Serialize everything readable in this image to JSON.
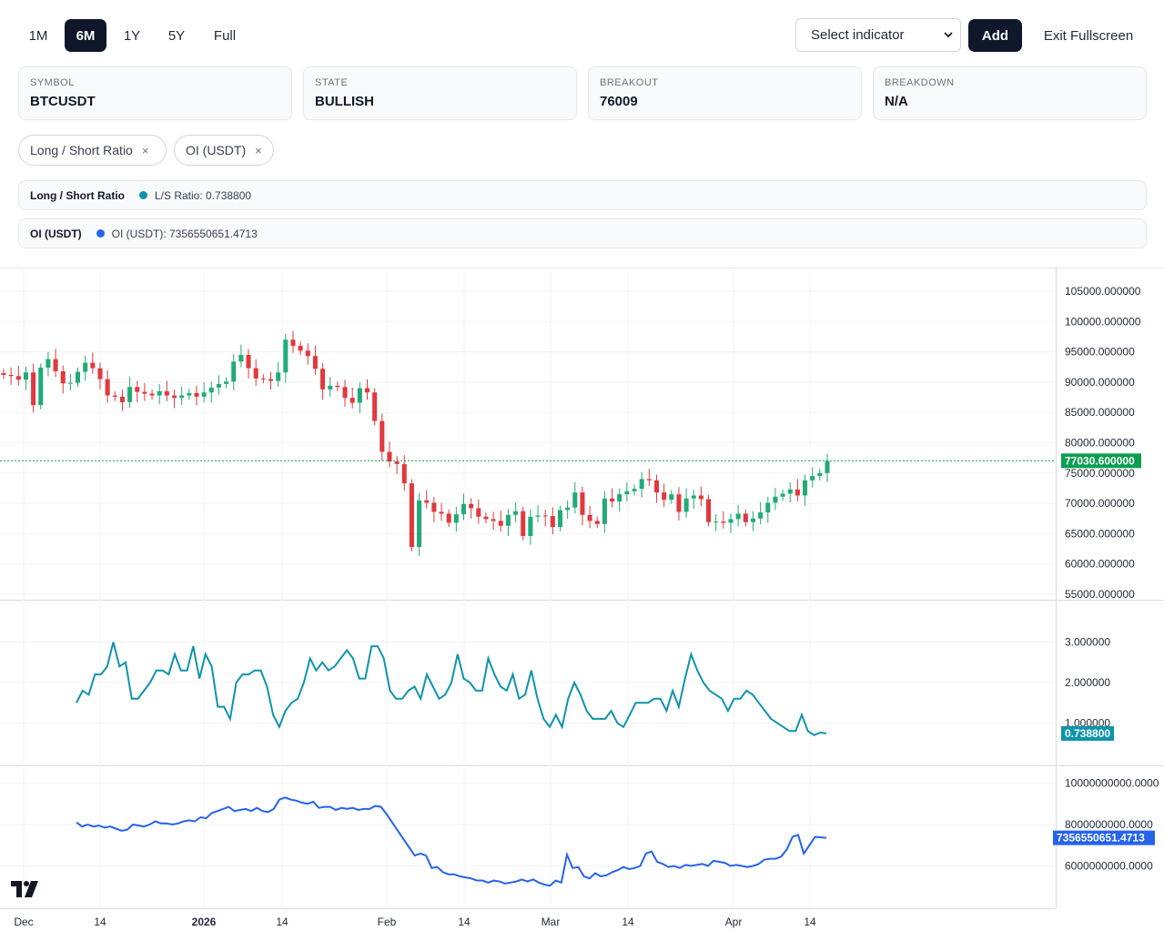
{
  "toolbar": {
    "ranges": [
      {
        "label": "1M",
        "active": false
      },
      {
        "label": "6M",
        "active": true
      },
      {
        "label": "1Y",
        "active": false
      },
      {
        "label": "5Y",
        "active": false
      },
      {
        "label": "Full",
        "active": false
      }
    ],
    "indicator_select": "Select indicator",
    "add_label": "Add",
    "exit_label": "Exit Fullscreen"
  },
  "cards": [
    {
      "label": "SYMBOL",
      "value": "BTCUSDT"
    },
    {
      "label": "STATE",
      "value": "BULLISH"
    },
    {
      "label": "BREAKOUT",
      "value": "76009"
    },
    {
      "label": "BREAKDOWN",
      "value": "N/A"
    }
  ],
  "chips": [
    {
      "label": "Long / Short Ratio",
      "close": "×"
    },
    {
      "label": "OI (USDT)",
      "close": "×"
    }
  ],
  "legends": [
    {
      "name": "Long / Short Ratio",
      "text": "L/S Ratio: 0.738800",
      "color": "#0e94ab"
    },
    {
      "name": "OI (USDT)",
      "text": "OI (USDT): 7356550651.4713",
      "color": "#2563eb"
    }
  ],
  "colors": {
    "up": "#22ab77",
    "down": "#e0393e",
    "ls": "#0e94ab",
    "oi": "#2563eb",
    "last_price": "#0b9e4f"
  },
  "chart_data": {
    "type": "candlestick",
    "x_ticks": [
      "Dec",
      "14",
      "2026",
      "14",
      "Feb",
      "14",
      "Mar",
      "14",
      "Apr",
      "14"
    ],
    "price_ticks": [
      "105000.000000",
      "100000.000000",
      "95000.000000",
      "90000.000000",
      "85000.000000",
      "80000.000000",
      "75000.000000",
      "70000.000000",
      "65000.000000",
      "60000.000000",
      "55000.000000"
    ],
    "price_range": [
      55000,
      105000
    ],
    "last_price": "77030.600000",
    "last_price_value": 77030.6,
    "closes": [
      91200,
      91000,
      90400,
      91600,
      86200,
      92400,
      93800,
      91800,
      89800,
      89900,
      91700,
      93200,
      92300,
      90500,
      87800,
      87600,
      86700,
      89200,
      88400,
      88100,
      87800,
      88500,
      87800,
      87400,
      87800,
      88200,
      87600,
      88300,
      89100,
      89700,
      90100,
      93400,
      94500,
      92300,
      90600,
      90500,
      90200,
      91600,
      97000,
      96000,
      95200,
      94300,
      92200,
      88800,
      89400,
      89200,
      87400,
      86600,
      89000,
      88300,
      83600,
      78500,
      76900,
      76500,
      73300,
      62800,
      70500,
      70100,
      68600,
      68300,
      66800,
      68200,
      69900,
      69200,
      67800,
      67400,
      67100,
      66300,
      68100,
      68700,
      64600,
      67800,
      68000,
      67900,
      66100,
      68900,
      69300,
      71800,
      68100,
      67100,
      66600,
      70800,
      70300,
      71500,
      72000,
      72400,
      74000,
      73800,
      71800,
      70600,
      71500,
      68600,
      70800,
      71300,
      70700,
      66900,
      67000,
      66800,
      67400,
      68300,
      66900,
      67500,
      68500,
      70100,
      71100,
      71600,
      72300,
      71300,
      73800,
      74500,
      75000,
      77000
    ],
    "ls_ticks": [
      "3.000000",
      "2.000000",
      "1.000000"
    ],
    "ls_range": [
      0.4,
      3.6
    ],
    "ls_last": "0.738800",
    "ls_values": [
      1.5,
      1.8,
      1.7,
      2.2,
      2.2,
      2.4,
      3.0,
      2.4,
      2.5,
      1.6,
      1.6,
      1.8,
      2.0,
      2.3,
      2.3,
      2.2,
      2.7,
      2.3,
      2.3,
      2.9,
      2.1,
      2.7,
      2.4,
      1.4,
      1.4,
      1.1,
      2.0,
      2.2,
      2.2,
      2.3,
      2.3,
      1.9,
      1.2,
      0.9,
      1.3,
      1.5,
      1.6,
      2.0,
      2.6,
      2.3,
      2.5,
      2.3,
      2.4,
      2.6,
      2.8,
      2.6,
      2.1,
      2.1,
      2.9,
      2.9,
      2.6,
      1.8,
      1.6,
      1.6,
      1.8,
      1.9,
      1.6,
      2.2,
      1.9,
      1.6,
      1.7,
      2.0,
      2.7,
      2.1,
      2.0,
      1.8,
      1.8,
      2.6,
      2.2,
      1.9,
      1.8,
      2.2,
      1.6,
      1.7,
      2.3,
      1.6,
      1.1,
      0.9,
      1.2,
      0.9,
      1.6,
      2.0,
      1.7,
      1.3,
      1.1,
      1.1,
      1.1,
      1.3,
      1.0,
      0.9,
      1.2,
      1.5,
      1.5,
      1.5,
      1.6,
      1.6,
      1.3,
      1.8,
      1.4,
      2.1,
      2.7,
      2.3,
      2.0,
      1.8,
      1.7,
      1.6,
      1.3,
      1.6,
      1.6,
      1.8,
      1.7,
      1.5,
      1.3,
      1.1,
      1.0,
      0.9,
      0.8,
      0.8,
      1.2,
      0.8,
      0.7,
      0.76,
      0.74
    ],
    "oi_ticks": [
      "10000000000.0000",
      "8000000000.0000",
      "6000000000.0000"
    ],
    "oi_range": [
      4400000000,
      10500000000
    ],
    "oi_last": "7356550651.4713",
    "oi_values": [
      8100000000,
      7900000000,
      8000000000,
      7900000000,
      7950000000,
      7850000000,
      7900000000,
      7800000000,
      7700000000,
      7750000000,
      8000000000,
      7950000000,
      7900000000,
      8000000000,
      8150000000,
      8050000000,
      8050000000,
      8000000000,
      8050000000,
      8150000000,
      8200000000,
      8150000000,
      8350000000,
      8300000000,
      8550000000,
      8650000000,
      8750000000,
      8850000000,
      8650000000,
      8700000000,
      8750000000,
      8650000000,
      8800000000,
      8650000000,
      8600000000,
      8750000000,
      9200000000,
      9300000000,
      9200000000,
      9150000000,
      9050000000,
      9000000000,
      9100000000,
      8800000000,
      8850000000,
      8850000000,
      8700000000,
      8800000000,
      8750000000,
      8800000000,
      8700000000,
      8750000000,
      8750000000,
      8900000000,
      8850000000,
      8500000000,
      8100000000,
      7700000000,
      7300000000,
      6900000000,
      6500000000,
      6600000000,
      6500000000,
      5900000000,
      5950000000,
      5700000000,
      5600000000,
      5600000000,
      5500000000,
      5450000000,
      5400000000,
      5300000000,
      5300000000,
      5200000000,
      5300000000,
      5250000000,
      5150000000,
      5200000000,
      5250000000,
      5350000000,
      5250000000,
      5350000000,
      5200000000,
      5100000000,
      5050000000,
      5300000000,
      5200000000,
      6550000000,
      5900000000,
      5950000000,
      5500000000,
      5400000000,
      5650000000,
      5500000000,
      5550000000,
      5700000000,
      5800000000,
      5950000000,
      5850000000,
      5900000000,
      6000000000,
      6600000000,
      6700000000,
      6200000000,
      6100000000,
      5950000000,
      6000000000,
      5900000000,
      6050000000,
      6000000000,
      6050000000,
      6100000000,
      6000000000,
      6250000000,
      6200000000,
      6150000000,
      6000000000,
      6050000000,
      6000000000,
      5950000000,
      6000000000,
      6100000000,
      6300000000,
      6350000000,
      6350000000,
      6450000000,
      6800000000,
      7400000000,
      7500000000,
      6600000000,
      7000000000,
      7400000000,
      7380000000,
      7356550651
    ]
  }
}
